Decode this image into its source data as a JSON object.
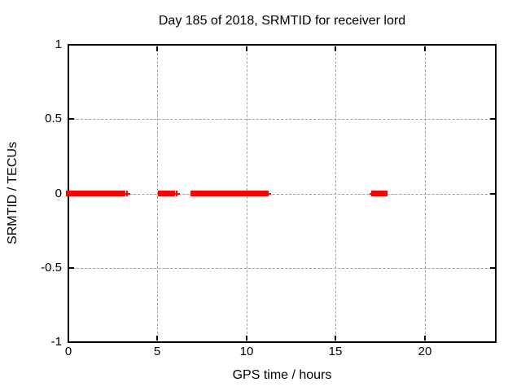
{
  "chart_data": {
    "type": "scatter",
    "title": "Day 185 of 2018, SRMTID for receiver lord",
    "xlabel": "GPS time / hours",
    "ylabel": "SRMTID / TECUs",
    "xlim": [
      0,
      24
    ],
    "ylim": [
      -1,
      1
    ],
    "xticks": [
      {
        "v": 0,
        "label": "0"
      },
      {
        "v": 5,
        "label": "5"
      },
      {
        "v": 10,
        "label": "10"
      },
      {
        "v": 15,
        "label": "15"
      },
      {
        "v": 20,
        "label": "20"
      }
    ],
    "yticks": [
      {
        "v": 1,
        "label": "1"
      },
      {
        "v": 0.5,
        "label": "0.5"
      },
      {
        "v": 0,
        "label": "0"
      },
      {
        "v": -0.5,
        "label": "-0.5"
      },
      {
        "v": -1,
        "label": "-1"
      }
    ],
    "grid": "dashed, at every major tick",
    "legend": "none",
    "marker": "plus",
    "series": [
      {
        "name": "SRMTID",
        "color": "#ff0000",
        "y_value": 0,
        "dense_runs_hours": [
          [
            0.0,
            0.61
          ],
          [
            0.73,
            2.53
          ],
          [
            2.75,
            3.05
          ],
          [
            5.18,
            5.83
          ],
          [
            7.0,
            11.0
          ],
          [
            17.2,
            17.8
          ]
        ],
        "isolated_points_hours": [
          3.27,
          5.95,
          6.1,
          11.2,
          17.05
        ]
      }
    ],
    "colors": {
      "data": "#ff0000",
      "grid": "#a0a0a0",
      "axis": "#000000",
      "text": "#000000",
      "background": "#ffffff"
    }
  }
}
